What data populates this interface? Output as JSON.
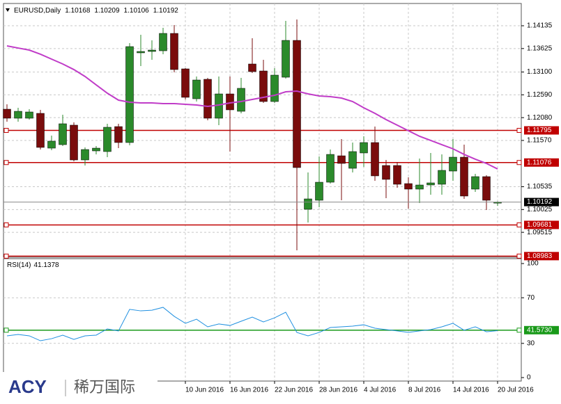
{
  "chart_data": [
    {
      "type": "candlestick",
      "title": "EURUSD,Daily",
      "categories": [
        null,
        null,
        null,
        null,
        null,
        null,
        null,
        null,
        null,
        null,
        null,
        null,
        null,
        null,
        null,
        null,
        "10 Jun 2016",
        null,
        null,
        null,
        "16 Jun 2016",
        null,
        null,
        null,
        "22 Jun 2016",
        null,
        null,
        null,
        "28 Jun 2016",
        null,
        null,
        null,
        "4 Jul 2016",
        null,
        null,
        null,
        "8 Jul 2016",
        null,
        null,
        null,
        "14 Jul 2016",
        null,
        null,
        null,
        "20 Jul 2016"
      ],
      "open": [
        1.12269,
        1.12067,
        1.12067,
        1.12176,
        1.11398,
        1.11476,
        1.11912,
        1.11134,
        1.11336,
        1.11321,
        1.1188,
        1.11523,
        1.13529,
        1.1356,
        1.13575,
        1.13964,
        1.13171,
        1.12502,
        1.12938,
        1.12067,
        1.12611,
        1.12222,
        1.1328,
        1.13124,
        1.1244,
        1.12984,
        1.13808,
        1.1003,
        1.10232,
        1.10636,
        1.11227,
        1.10947,
        1.1129,
        1.11523,
        1.1101,
        1.1101,
        1.10605,
        1.10481,
        1.10574,
        1.1059,
        1.10885,
        1.11196,
        1.10481,
        1.10761,
        1.10168
      ],
      "high": [
        1.12378,
        1.123,
        1.12269,
        1.12254,
        1.11678,
        1.12145,
        1.11974,
        1.11414,
        1.11445,
        1.11943,
        1.11943,
        1.13746,
        1.13933,
        1.13808,
        1.14088,
        1.14151,
        1.13186,
        1.13,
        1.12969,
        1.13,
        1.13,
        1.12969,
        1.13855,
        1.13373,
        1.13186,
        1.14244,
        1.14275,
        1.10854,
        1.11212,
        1.11367,
        1.11601,
        1.11523,
        1.11663,
        1.1188,
        1.11134,
        1.11087,
        1.10745,
        1.11165,
        1.1129,
        1.11258,
        1.11601,
        1.11476,
        1.10823,
        1.10792,
        1.10209
      ],
      "low": [
        1.11989,
        1.11989,
        1.12036,
        1.11367,
        1.11352,
        1.11445,
        1.11103,
        1.1101,
        1.11258,
        1.11196,
        1.11398,
        1.11461,
        1.13233,
        1.13373,
        1.13498,
        1.13093,
        1.12487,
        1.1244,
        1.1202,
        1.11912,
        1.11321,
        1.12176,
        1.13078,
        1.12409,
        1.12409,
        1.12953,
        1.09113,
        1.09735,
        1.10077,
        1.10605,
        1.10232,
        1.10854,
        1.10979,
        1.10668,
        1.10279,
        1.10512,
        1.10046,
        1.1017,
        1.10357,
        1.10357,
        1.10668,
        1.10263,
        1.10419,
        1.10015,
        1.10106
      ],
      "close": [
        1.12067,
        1.12222,
        1.12207,
        1.11414,
        1.11554,
        1.11943,
        1.11134,
        1.11367,
        1.11398,
        1.11865,
        1.11523,
        1.13669,
        1.1356,
        1.13591,
        1.13964,
        1.13155,
        1.12534,
        1.12922,
        1.12067,
        1.12611,
        1.12254,
        1.12736,
        1.13109,
        1.1244,
        1.13031,
        1.13808,
        1.10963,
        1.10263,
        1.10636,
        1.11258,
        1.11056,
        1.11321,
        1.11523,
        1.10777,
        1.10699,
        1.1059,
        1.10481,
        1.10574,
        1.10621,
        1.10901,
        1.11196,
        1.10326,
        1.10761,
        1.10232,
        1.10192
      ],
      "up_color": "#2b8a2b",
      "down_color": "#7a0c0c",
      "moving_average": {
        "color": "#c03cc8",
        "values": [
          1.13684,
          1.13637,
          1.13591,
          1.13498,
          1.13389,
          1.1328,
          1.13155,
          1.13,
          1.12813,
          1.12627,
          1.12471,
          1.12425,
          1.12409,
          1.12409,
          1.12394,
          1.12394,
          1.12378,
          1.12362,
          1.12331,
          1.12362,
          1.12409,
          1.1244,
          1.12487,
          1.12534,
          1.1258,
          1.12658,
          1.12674,
          1.12611,
          1.12565,
          1.12549,
          1.12518,
          1.1244,
          1.123,
          1.12176,
          1.12036,
          1.11912,
          1.11787,
          1.11663,
          1.1157,
          1.11476,
          1.11383,
          1.11258,
          1.1115,
          1.11056,
          1.10932
        ]
      },
      "levels": [
        {
          "value": 1.11795,
          "color": "#c00000"
        },
        {
          "value": 1.11076,
          "color": "#c00000"
        },
        {
          "value": 1.09681,
          "color": "#c00000"
        },
        {
          "value": 1.08983,
          "color": "#c00000"
        }
      ],
      "ylim": [
        1.08957,
        1.14633
      ],
      "yticks": [
        1.14135,
        1.13625,
        {
          "value": 1.131,
          "label": "1.13100"
        },
        {
          "value": 1.1259,
          "label": "1.12590"
        },
        {
          "value": 1.1208,
          "label": "1.12080"
        },
        {
          "value": 1.1157,
          "label": "1.11570"
        },
        1.10535,
        1.10025,
        1.09515
      ],
      "grid": true
    },
    {
      "type": "line",
      "title": "RSI(14)",
      "color": "#1e8fe0",
      "values": [
        36.6,
        37.8,
        36.6,
        32.3,
        34.1,
        37.2,
        33.5,
        36.6,
        37.2,
        42.7,
        40.9,
        59.8,
        58.5,
        59.1,
        61.6,
        53.7,
        47.6,
        51.2,
        44.5,
        47.0,
        45.7,
        49.4,
        53.0,
        48.8,
        52.4,
        57.3,
        39.6,
        36.6,
        39.6,
        43.9,
        44.5,
        45.1,
        46.3,
        43.3,
        42.1,
        40.9,
        39.6,
        40.9,
        42.1,
        44.5,
        47.6,
        41.5,
        44.5,
        40.2,
        41.1378
      ],
      "levels": [
        {
          "value": 41.573,
          "label": "41.5730",
          "color": "#1a9a1a"
        }
      ],
      "ylim": [
        0,
        100
      ],
      "yticks": [
        100,
        70,
        30,
        0
      ],
      "grid": true
    }
  ],
  "logo": {
    "brand": "ACY",
    "name": "稀万国际"
  }
}
